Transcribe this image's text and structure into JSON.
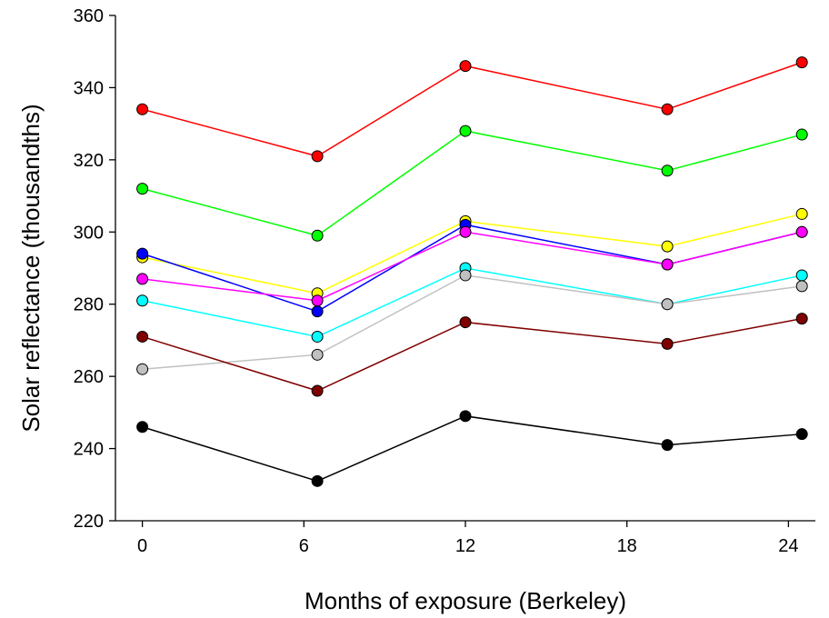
{
  "chart_data": {
    "type": "line",
    "title": "",
    "xlabel": "Months of exposure (Berkeley)",
    "ylabel": "Solar reflectance (thousandths)",
    "xlim": [
      -1,
      25
    ],
    "ylim": [
      220,
      360
    ],
    "x_ticks": [
      0,
      6,
      12,
      18,
      24
    ],
    "y_ticks": [
      220,
      240,
      260,
      280,
      300,
      320,
      340,
      360
    ],
    "grid": false,
    "legend": "none",
    "x": [
      0,
      6.5,
      12,
      19.5,
      24.5
    ],
    "series": [
      {
        "color": "#ff0000",
        "values": [
          334,
          321,
          346,
          334,
          347
        ]
      },
      {
        "color": "#00ff00",
        "values": [
          312,
          299,
          328,
          317,
          327
        ]
      },
      {
        "color": "#ffff00",
        "values": [
          293,
          283,
          303,
          296,
          305
        ]
      },
      {
        "color": "#0000ff",
        "values": [
          294,
          278,
          302,
          291,
          300
        ]
      },
      {
        "color": "#ff00ff",
        "values": [
          287,
          281,
          300,
          291,
          300
        ]
      },
      {
        "color": "#00ffff",
        "values": [
          281,
          271,
          290,
          280,
          288
        ]
      },
      {
        "color": "#c0c0c0",
        "values": [
          262,
          266,
          288,
          280,
          285
        ]
      },
      {
        "color": "#800000",
        "values": [
          271,
          256,
          275,
          269,
          276
        ]
      },
      {
        "color": "#000000",
        "values": [
          246,
          231,
          249,
          241,
          244
        ]
      }
    ]
  }
}
